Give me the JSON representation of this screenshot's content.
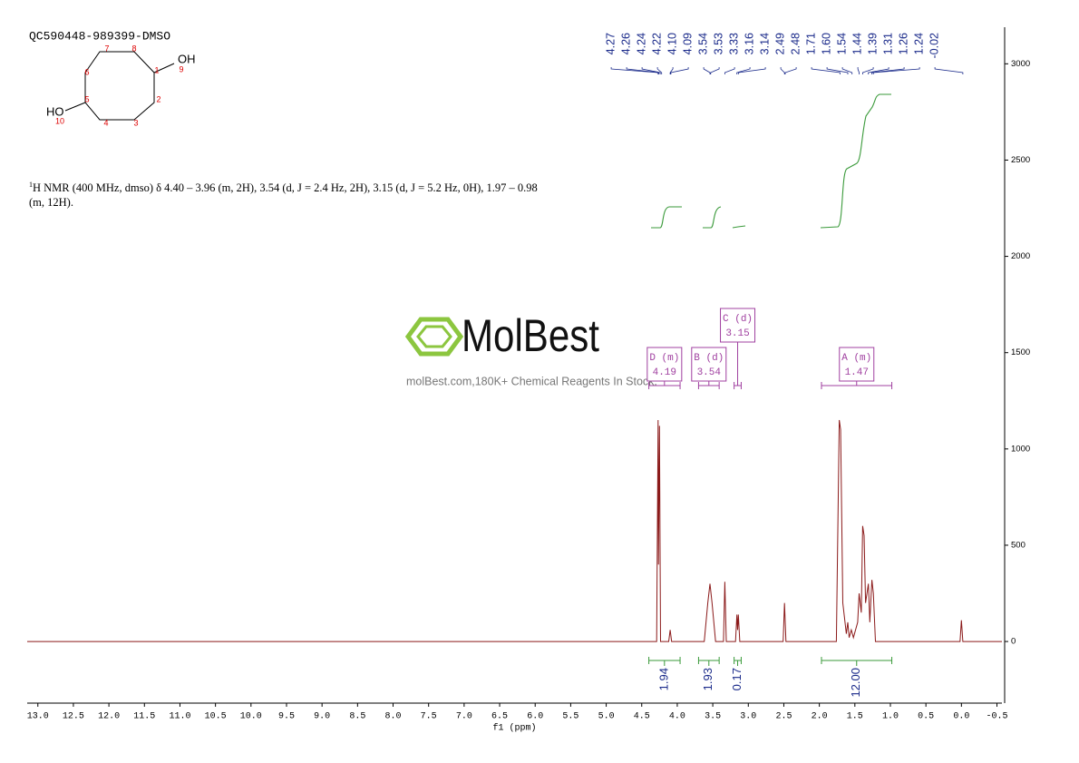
{
  "chart_data": {
    "type": "nmr",
    "title": "QC590448-989399-DMSO",
    "x_label": "f1 (ppm)",
    "xlim": [
      13.15,
      -0.57
    ],
    "xticks": [
      {
        "value": 13,
        "label": "13.0"
      },
      12.5,
      {
        "value": 12,
        "label": "12.0"
      },
      11.5,
      {
        "value": 11,
        "label": "11.0"
      },
      10.5,
      {
        "value": 10,
        "label": "10.0"
      },
      9.5,
      {
        "value": 9,
        "label": "9.0"
      },
      8.5,
      {
        "value": 8,
        "label": "8.0"
      },
      7.5,
      {
        "value": 7,
        "label": "7.0"
      },
      6.5,
      {
        "value": 6,
        "label": "6.0"
      },
      5.5,
      {
        "value": 5,
        "label": "5.0"
      },
      4.5,
      {
        "value": 4,
        "label": "4.0"
      },
      3.5,
      {
        "value": 3,
        "label": "3.0"
      },
      2.5,
      {
        "value": 2,
        "label": "2.0"
      },
      1.5,
      {
        "value": 1,
        "label": "1.0"
      },
      0.5,
      {
        "value": 0,
        "label": "0.0"
      },
      -0.5
    ],
    "ylim": [
      -320,
      3190
    ],
    "yticks": [
      0,
      500,
      1000,
      1500,
      2000,
      2500,
      3000
    ],
    "spectrum": {
      "color": "#8b1a1a",
      "x": [
        13.15,
        4.35,
        4.29,
        4.27,
        4.265,
        4.25,
        4.235,
        4.12,
        4.1,
        4.08,
        3.62,
        3.57,
        3.54,
        3.51,
        3.46,
        3.35,
        3.33,
        3.31,
        3.18,
        3.16,
        3.15,
        3.14,
        3.12,
        2.51,
        2.49,
        2.47,
        1.76,
        1.72,
        1.7,
        1.67,
        1.62,
        1.6,
        1.58,
        1.55,
        1.52,
        1.46,
        1.44,
        1.41,
        1.39,
        1.37,
        1.35,
        1.31,
        1.29,
        1.26,
        1.24,
        1.21,
        0.02,
        0,
        -0.02,
        -0.57
      ],
      "values": [
        0,
        0,
        0,
        1150,
        400,
        1120,
        0,
        0,
        60,
        0,
        0,
        200,
        300,
        200,
        0,
        0,
        310,
        0,
        0,
        140,
        60,
        140,
        0,
        0,
        200,
        0,
        0,
        1150,
        1100,
        200,
        40,
        100,
        20,
        60,
        20,
        100,
        250,
        150,
        600,
        550,
        200,
        300,
        100,
        320,
        250,
        0,
        0,
        110,
        0,
        0
      ]
    },
    "peak_labels": [
      4.27,
      4.26,
      4.24,
      4.22,
      {
        "value": 4.1,
        "label": "4.10"
      },
      4.09,
      3.54,
      3.53,
      3.33,
      3.16,
      3.14,
      2.49,
      2.48,
      1.71,
      {
        "value": 1.6,
        "label": "1.60"
      },
      1.54,
      1.44,
      1.39,
      1.31,
      1.26,
      1.24,
      -0.02
    ],
    "integrals": [
      {
        "from": 4.4,
        "to": 3.96,
        "value": 1.94
      },
      {
        "from": 3.7,
        "to": 3.41,
        "value": 1.93
      },
      {
        "from": 3.2,
        "to": 3.1,
        "value": 0.17
      },
      {
        "from": 1.97,
        "to": 0.98,
        "value": {
          "value": 12,
          "label": "12.00"
        }
      }
    ],
    "multiplets": [
      {
        "name": "D (m)",
        "shift": 4.19,
        "from": 4.4,
        "to": 3.96
      },
      {
        "name": "B (d)",
        "shift": 3.54,
        "from": 3.7,
        "to": 3.41
      },
      {
        "name": "C (d)",
        "shift": 3.15,
        "from": 3.2,
        "to": 3.1
      },
      {
        "name": "A (m)",
        "shift": 1.47,
        "from": 1.97,
        "to": 0.98
      }
    ]
  },
  "description": {
    "sup": "1",
    "text": "H NMR (400 MHz, dmso) δ 4.40 – 3.96 (m, 2H), 3.54 (d, J = 2.4 Hz, 2H), 3.15 (d, J = 5.2 Hz, 0H), 1.97 – 0.98 (m, 12H)."
  },
  "structure": {
    "oh_right": "OH",
    "oh_left": "HO",
    "atoms": [
      "1",
      "2",
      "3",
      "4",
      "5",
      "6",
      "7",
      "8",
      "9",
      "10"
    ]
  },
  "watermark": {
    "brand": "MolBest",
    "tagline": "molBest.com,180K+ Chemical Reagents In Stock."
  }
}
